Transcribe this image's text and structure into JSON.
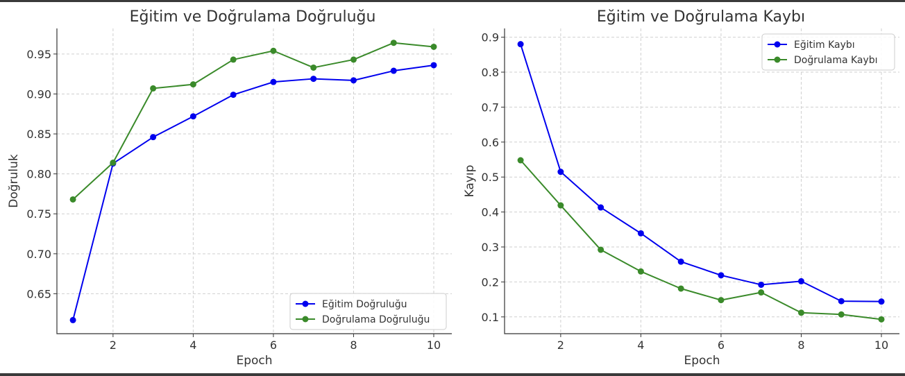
{
  "chart_data": [
    {
      "type": "line",
      "title": "Eğitim ve Doğrulama Doğruluğu",
      "xlabel": "Epoch",
      "ylabel": "Doğruluk",
      "x": [
        1,
        2,
        3,
        4,
        5,
        6,
        7,
        8,
        9,
        10
      ],
      "xlim": [
        0.6,
        10.45
      ],
      "ylim": [
        0.6,
        0.982
      ],
      "xticks": [
        2,
        4,
        6,
        8,
        10
      ],
      "xtick_labels": [
        "2",
        "4",
        "6",
        "8",
        "10"
      ],
      "yticks": [
        0.65,
        0.7,
        0.75,
        0.8,
        0.85,
        0.9,
        0.95
      ],
      "ytick_labels": [
        "0.65",
        "0.70",
        "0.75",
        "0.80",
        "0.85",
        "0.90",
        "0.95"
      ],
      "grid": true,
      "legend_position": "lower-right",
      "series": [
        {
          "name": "Eğitim Doğruluğu",
          "color": "#0000ee",
          "values": [
            0.617,
            0.813,
            0.846,
            0.872,
            0.899,
            0.915,
            0.919,
            0.917,
            0.929,
            0.936
          ]
        },
        {
          "name": "Doğrulama Doğruluğu",
          "color": "#3a8a2a",
          "values": [
            0.768,
            0.814,
            0.907,
            0.912,
            0.943,
            0.954,
            0.933,
            0.943,
            0.964,
            0.959
          ]
        }
      ]
    },
    {
      "type": "line",
      "title": "Eğitim ve Doğrulama Kaybı",
      "xlabel": "Epoch",
      "ylabel": "Kayıp",
      "x": [
        1,
        2,
        3,
        4,
        5,
        6,
        7,
        8,
        9,
        10
      ],
      "xlim": [
        0.6,
        10.45
      ],
      "ylim": [
        0.052,
        0.925
      ],
      "xticks": [
        2,
        4,
        6,
        8,
        10
      ],
      "xtick_labels": [
        "2",
        "4",
        "6",
        "8",
        "10"
      ],
      "yticks": [
        0.1,
        0.2,
        0.3,
        0.4,
        0.5,
        0.6,
        0.7,
        0.8,
        0.9
      ],
      "ytick_labels": [
        "0.1",
        "0.2",
        "0.3",
        "0.4",
        "0.5",
        "0.6",
        "0.7",
        "0.8",
        "0.9"
      ],
      "grid": true,
      "legend_position": "upper-right",
      "series": [
        {
          "name": "Eğitim Kaybı",
          "color": "#0000ee",
          "values": [
            0.88,
            0.515,
            0.413,
            0.339,
            0.258,
            0.219,
            0.192,
            0.202,
            0.145,
            0.144
          ]
        },
        {
          "name": "Doğrulama Kaybı",
          "color": "#3a8a2a",
          "values": [
            0.548,
            0.419,
            0.292,
            0.23,
            0.181,
            0.148,
            0.17,
            0.112,
            0.107,
            0.093
          ]
        }
      ]
    }
  ]
}
